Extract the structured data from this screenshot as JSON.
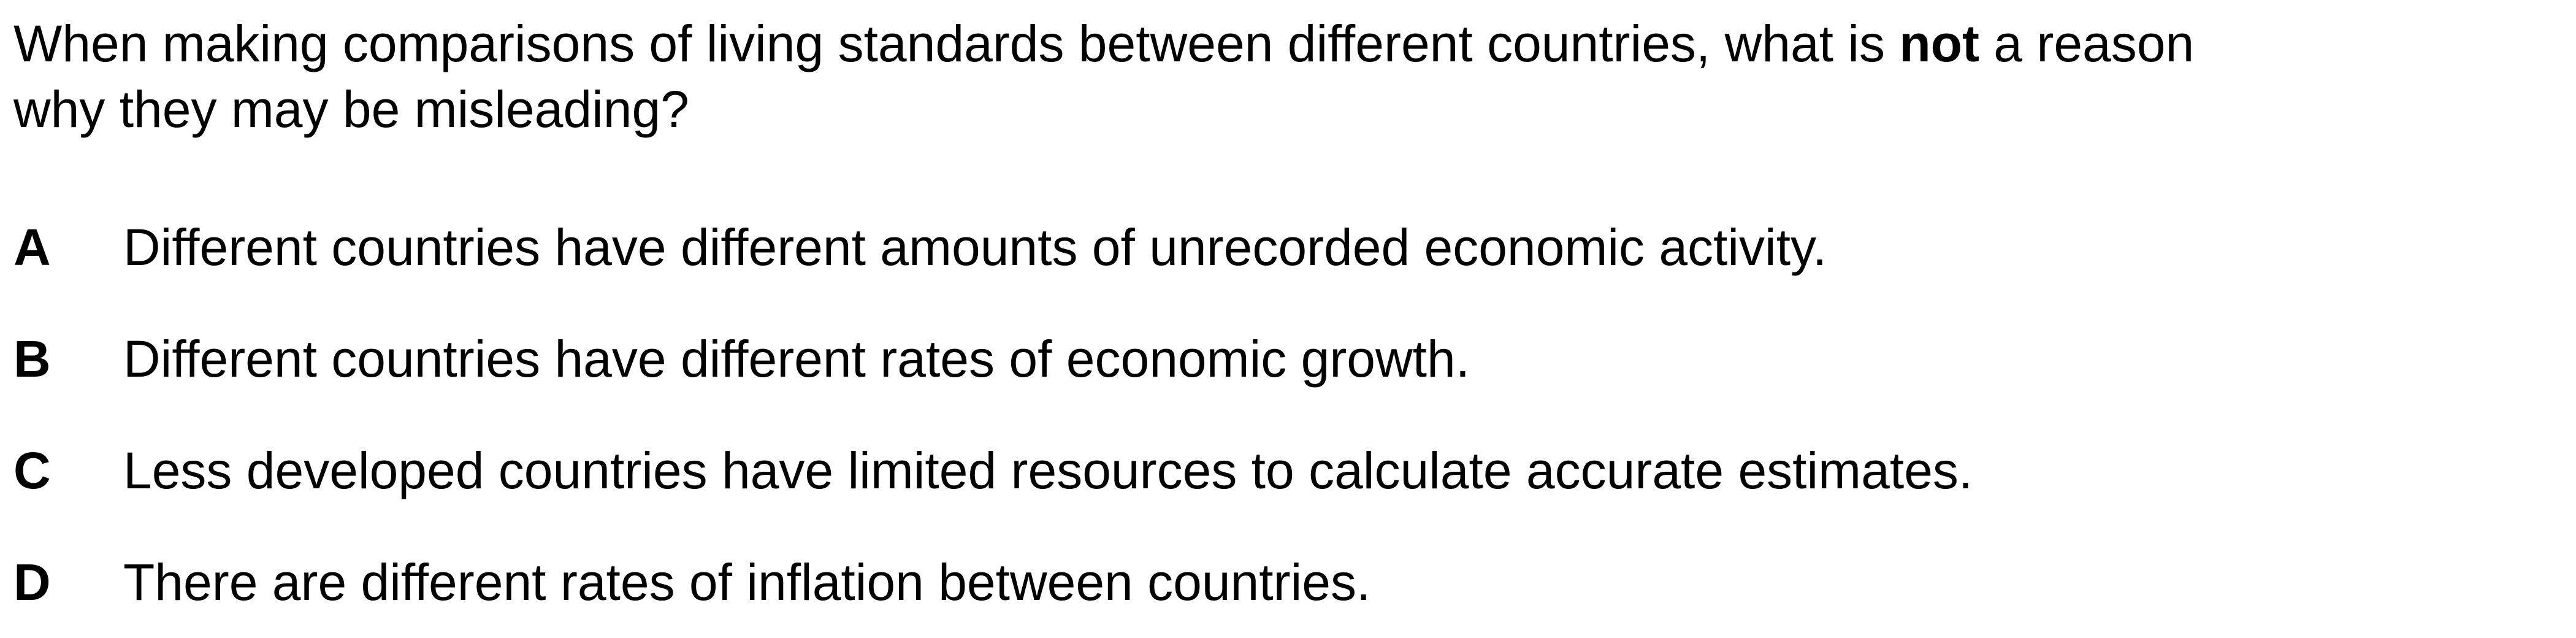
{
  "question": {
    "line1_before": "When making comparisons of living standards between different countries, what is ",
    "line1_bold": "not",
    "line1_after": " a reason",
    "line2": "why they may be misleading?"
  },
  "options": [
    {
      "letter": "A",
      "text": "Different countries have different amounts of unrecorded economic activity."
    },
    {
      "letter": "B",
      "text": "Different countries have different rates of economic growth."
    },
    {
      "letter": "C",
      "text": "Less developed countries have limited resources to calculate accurate estimates."
    },
    {
      "letter": "D",
      "text": "There are different rates of inflation between countries."
    }
  ]
}
